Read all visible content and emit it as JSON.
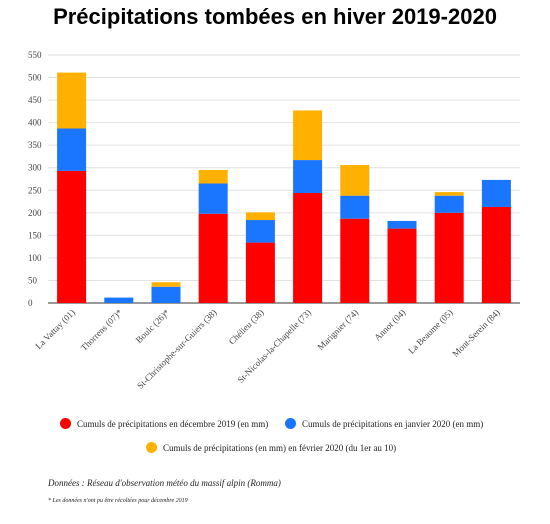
{
  "chart_data": {
    "type": "bar",
    "stacked": true,
    "title": "Précipitations tombées en hiver 2019-2020",
    "categories": [
      "La Vattay (01)",
      "Thorrens (07)*",
      "Boulc (26)*",
      "St-Christophe-sur-Guiers (38)",
      "Chélieu (38)",
      "St-Nicolas-la-Chapelle (73)",
      "Marignier (74)",
      "Annot (04)",
      "La Beaume (05)",
      "Mont-Serein (84)"
    ],
    "series": [
      {
        "name": "Cumuls de précipitations en décembre 2019 (en mm)",
        "color": "#ff0000",
        "values": [
          293,
          0,
          0,
          198,
          134,
          244,
          187,
          165,
          200,
          213
        ]
      },
      {
        "name": "Cumuls de précipitations en janvier 2020 (en mm)",
        "color": "#1a75ff",
        "values": [
          94,
          12,
          36,
          67,
          50,
          73,
          51,
          17,
          38,
          60
        ]
      },
      {
        "name": "Cumuls de précipitations (en mm) en février 2020 (du 1er au 10)",
        "color": "#ffb000",
        "values": [
          124,
          0,
          10,
          30,
          17,
          110,
          68,
          0,
          8,
          0
        ]
      }
    ],
    "yticks": [
      0,
      50,
      100,
      150,
      200,
      250,
      300,
      350,
      400,
      450,
      500,
      550
    ],
    "ylim": [
      0,
      550
    ],
    "grid": true,
    "legend_position": "bottom"
  },
  "source": "Données : Réseau d'observation météo du massif alpin (Romma)",
  "note": "* Les données n'ont pu être récoltées pour décembre 2019"
}
